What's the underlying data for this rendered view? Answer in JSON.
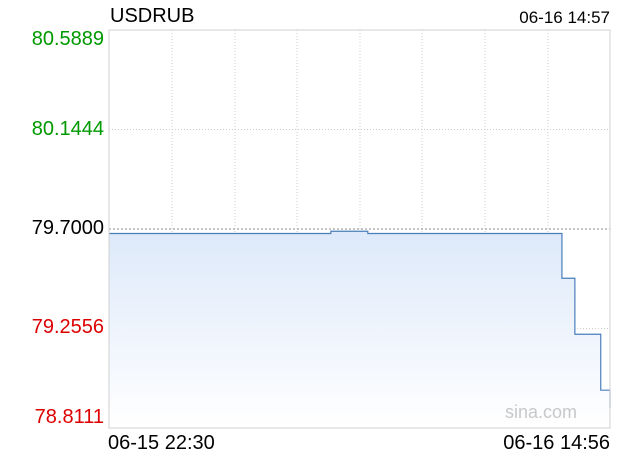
{
  "header": {
    "symbol": "USDRUB",
    "timestamp": "06-16 14:57"
  },
  "watermark": "sina.com",
  "colors": {
    "up": "#009900",
    "neutral": "#000000",
    "down": "#dd0000",
    "line": "#4a7ebb",
    "fill_top": "#dde9fa",
    "fill_bottom": "#ffffff",
    "grid": "#cccccc"
  },
  "chart_data": {
    "type": "line",
    "title": "USDRUB",
    "ylim": [
      78.8111,
      80.5889
    ],
    "reference_value": 79.7,
    "y_ticks": [
      {
        "label": "80.5889",
        "value": 80.5889,
        "tone": "up"
      },
      {
        "label": "80.1444",
        "value": 80.1444,
        "tone": "up"
      },
      {
        "label": "79.7000",
        "value": 79.7,
        "tone": "neutral"
      },
      {
        "label": "79.2556",
        "value": 79.2556,
        "tone": "down"
      },
      {
        "label": "78.8111",
        "value": 78.8111,
        "tone": "down"
      }
    ],
    "x_labels": [
      "06-15 22:30",
      "06-16 14:56"
    ],
    "grid": true,
    "series": [
      {
        "points": [
          [
            0,
            79.68
          ],
          [
            100,
            79.68
          ],
          [
            120,
            79.69
          ],
          [
            140,
            79.68
          ],
          [
            240,
            79.68
          ],
          [
            245,
            79.48
          ],
          [
            250,
            79.48
          ],
          [
            252,
            79.23
          ],
          [
            264,
            79.23
          ],
          [
            266,
            78.98
          ],
          [
            270,
            78.98
          ],
          [
            271,
            78.9
          ]
        ]
      }
    ]
  }
}
